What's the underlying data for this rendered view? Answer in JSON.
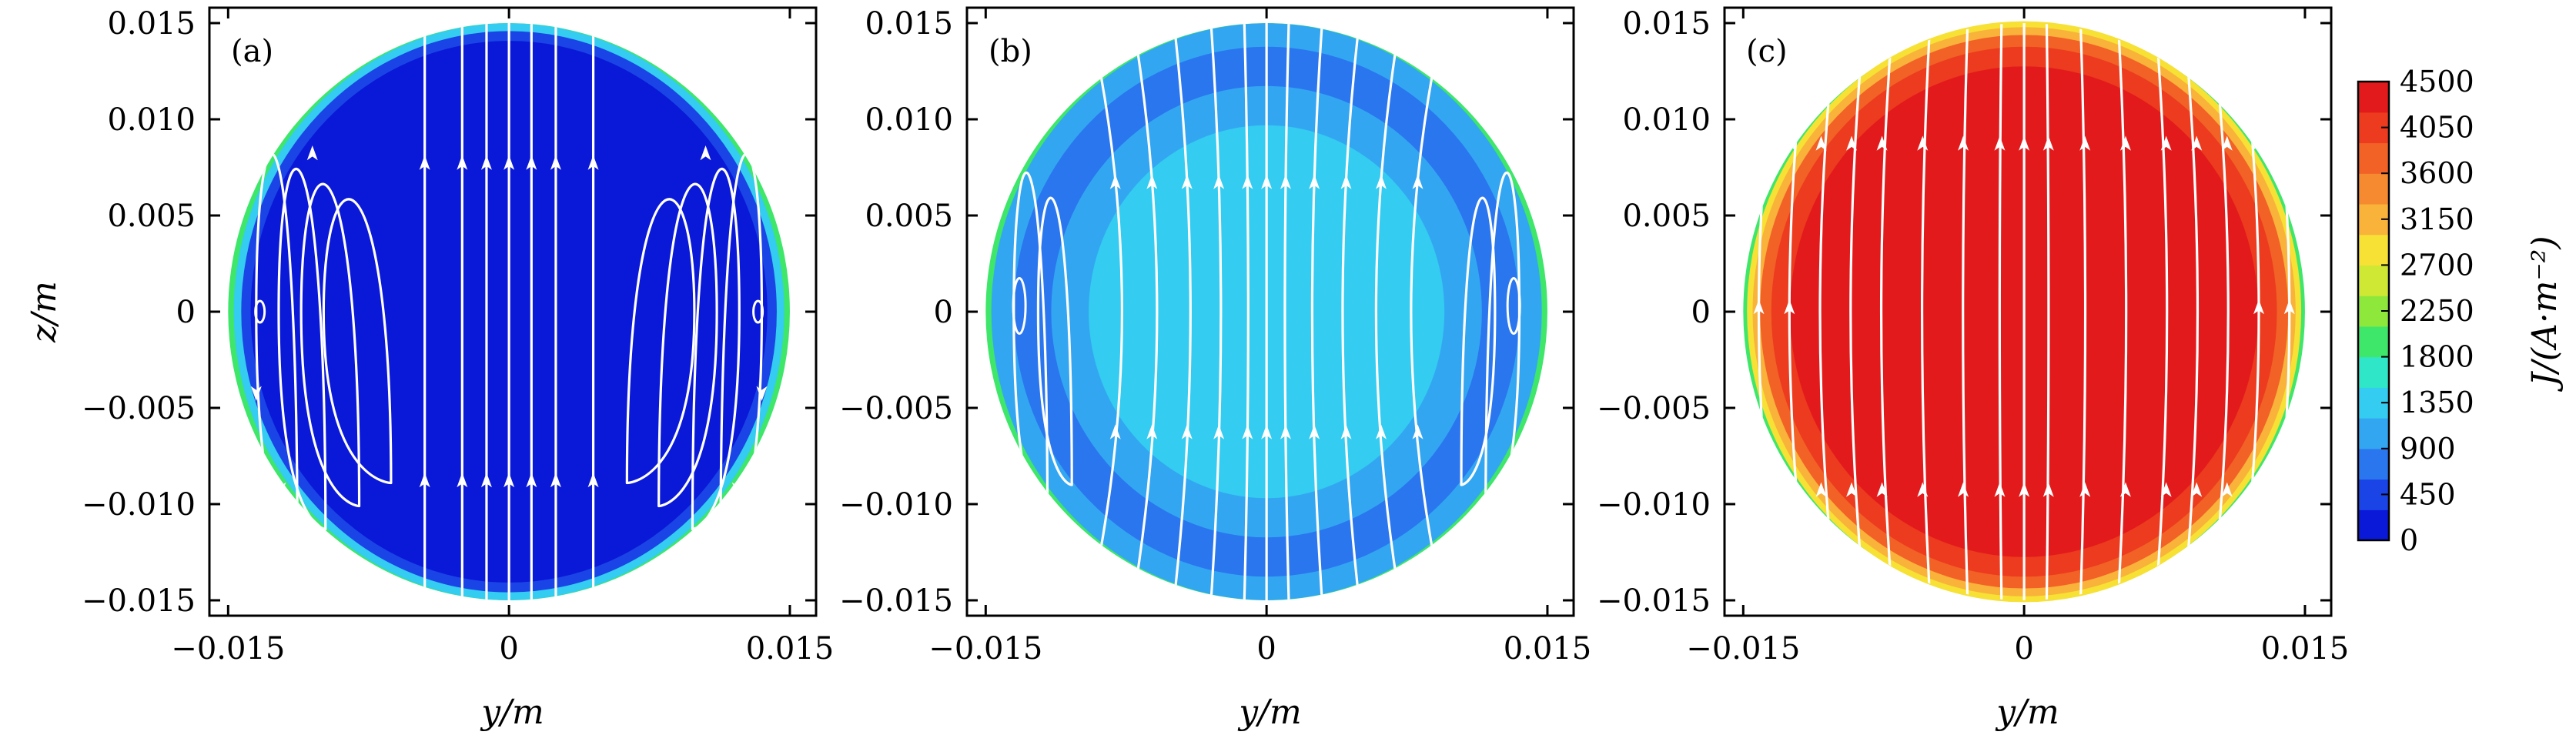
{
  "chart_data": [
    {
      "type": "heatmap",
      "panel_label": "(a)",
      "xlabel": "y/m",
      "ylabel": "z/m",
      "xlim": [
        -0.016,
        0.0164
      ],
      "ylim": [
        -0.0158,
        0.0158
      ],
      "xticks": [
        -0.015,
        0,
        0.015
      ],
      "xtick_labels": [
        "−0.015",
        "0",
        "0.015"
      ],
      "yticks": [
        0.015,
        0.01,
        0.005,
        0,
        -0.005,
        -0.01,
        -0.015
      ],
      "ytick_labels": [
        "0.015",
        "0.010",
        "0.005",
        "0",
        "−0.005",
        "−0.010",
        "−0.015"
      ],
      "domain_radius": 0.015,
      "fill_levels": [
        {
          "radius": 0.015,
          "value": 1800
        },
        {
          "radius": 0.0147,
          "value": 1350
        },
        {
          "radius": 0.0143,
          "value": 450
        },
        {
          "radius": 0.0138,
          "value": 200
        }
      ],
      "streamlines": "two counter-rotating vortices, upward flow in the centre and downward near the walls"
    },
    {
      "type": "heatmap",
      "panel_label": "(b)",
      "xlabel": "y/m",
      "ylabel": "",
      "xlim": [
        -0.016,
        0.0164
      ],
      "ylim": [
        -0.0158,
        0.0158
      ],
      "xticks": [
        -0.015,
        0,
        0.015
      ],
      "xtick_labels": [
        "−0.015",
        "0",
        "0.015"
      ],
      "yticks": [
        0.015,
        0.01,
        0.005,
        0,
        -0.005,
        -0.01,
        -0.015
      ],
      "ytick_labels": [
        "0.015",
        "0.010",
        "0.005",
        "0",
        "−0.005",
        "−0.010",
        "−0.015"
      ],
      "domain_radius": 0.015,
      "fill_levels": [
        {
          "radius": 0.015,
          "value": 1800
        },
        {
          "radius": 0.0147,
          "value": 900
        },
        {
          "radius": 0.0135,
          "value": 700
        },
        {
          "radius": 0.0115,
          "value": 1100
        },
        {
          "radius": 0.0095,
          "value": 1350
        }
      ],
      "streamlines": "central upward flow with weak vortices at the left and right edges"
    },
    {
      "type": "heatmap",
      "panel_label": "(c)",
      "xlabel": "y/m",
      "ylabel": "",
      "xlim": [
        -0.016,
        0.0164
      ],
      "ylim": [
        -0.0158,
        0.0158
      ],
      "xticks": [
        -0.015,
        0,
        0.015
      ],
      "xtick_labels": [
        "−0.015",
        "0",
        "0.015"
      ],
      "yticks": [
        0.015,
        0.01,
        0.005,
        0,
        -0.005,
        -0.01,
        -0.015
      ],
      "ytick_labels": [
        "0.015",
        "0.010",
        "0.005",
        "0",
        "−0.005",
        "−0.010",
        "−0.015"
      ],
      "domain_radius": 0.015,
      "fill_levels": [
        {
          "radius": 0.015,
          "value": 1800
        },
        {
          "radius": 0.0148,
          "value": 2700
        },
        {
          "radius": 0.0145,
          "value": 3150
        },
        {
          "radius": 0.0141,
          "value": 3600
        },
        {
          "radius": 0.0135,
          "value": 4050
        },
        {
          "radius": 0.0125,
          "value": 4300
        }
      ],
      "streamlines": "uniform upward flow throughout the domain"
    }
  ],
  "colorbar": {
    "title": "J/(A·m⁻²)",
    "min": 0,
    "max": 4500,
    "tick_values": [
      4500,
      4050,
      3600,
      3150,
      2700,
      2250,
      1800,
      1350,
      900,
      450,
      0
    ],
    "tick_labels": [
      "4500",
      "4050",
      "3600",
      "3150",
      "2700",
      "2250",
      "1800",
      "1350",
      "900",
      "450",
      "0"
    ],
    "colors": [
      "#0a18d8",
      "#1a44e6",
      "#2a76ee",
      "#33a6f2",
      "#34ccf0",
      "#30e6c8",
      "#3ee66a",
      "#8ee83c",
      "#cfe834",
      "#f6e134",
      "#f9b23a",
      "#f68a30",
      "#f26126",
      "#ec3b1e",
      "#e31a1c"
    ]
  }
}
